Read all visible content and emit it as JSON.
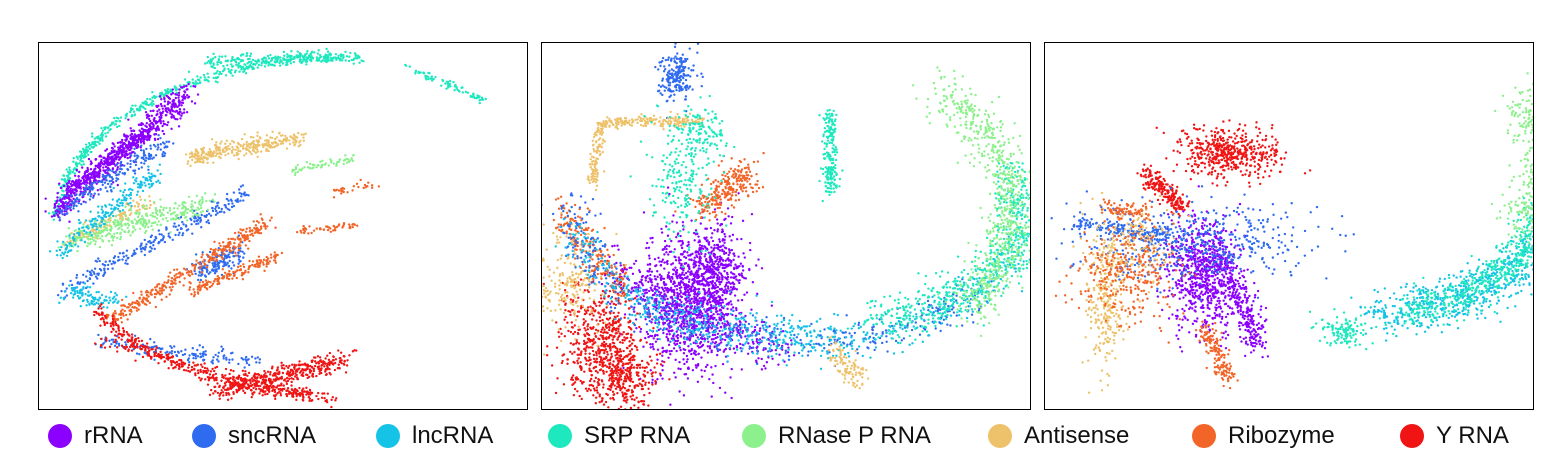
{
  "chart_data": {
    "type": "scatter",
    "panels": [
      {
        "id": "panel-0",
        "title": ""
      },
      {
        "id": "panel-1",
        "title": ""
      },
      {
        "id": "panel-2",
        "title": ""
      }
    ],
    "grid": false,
    "axes_visible": false,
    "legend_placement": "bottom",
    "series": [
      {
        "name": "rRNA",
        "color": "#8B00FF"
      },
      {
        "name": "sncRNA",
        "color": "#2F6BF0"
      },
      {
        "name": "lncRNA",
        "color": "#14C3E6"
      },
      {
        "name": "SRP RNA",
        "color": "#1EE8BE"
      },
      {
        "name": "RNase P RNA",
        "color": "#8CF08C"
      },
      {
        "name": "Antisense",
        "color": "#EDC26B"
      },
      {
        "name": "Ribozyme",
        "color": "#F26428"
      },
      {
        "name": "Y RNA",
        "color": "#F01414"
      }
    ]
  }
}
